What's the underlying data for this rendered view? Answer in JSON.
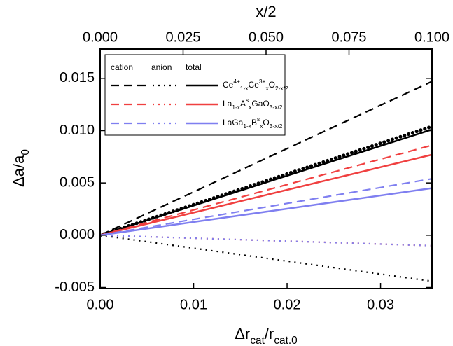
{
  "chart_data": {
    "type": "line",
    "x_label": [
      {
        "text": "Δr"
      },
      {
        "text": "cat",
        "pos": "sub"
      },
      {
        "text": "/r"
      },
      {
        "text": "cat.0",
        "pos": "sub"
      }
    ],
    "y_label": [
      {
        "text": "Δa/a"
      },
      {
        "text": "0",
        "pos": "sub"
      }
    ],
    "x2_label": "x/2",
    "xlim": [
      0,
      0.0355
    ],
    "xticks": [
      {
        "value": 0,
        "label": "0.00"
      },
      0.01,
      0.02,
      0.03
    ],
    "x2lim": [
      0,
      0.1
    ],
    "x2ticks": [
      {
        "value": 0,
        "label": "0.000"
      },
      0.025,
      {
        "value": 0.05,
        "label": "0.050"
      },
      0.075,
      {
        "value": 0.1,
        "label": "0.100"
      }
    ],
    "ylim": [
      -0.0051,
      0.0178
    ],
    "yticks": [
      -0.005,
      {
        "value": 0,
        "label": "0.000"
      },
      0.005,
      {
        "value": 0.01,
        "label": "0.010"
      },
      0.015
    ],
    "x": [
      0,
      0.0355
    ],
    "legend": {
      "columns": [
        "cation",
        "anion",
        "total"
      ],
      "rows": [
        {
          "color": "#000000",
          "label": [
            {
              "text": "Ce"
            },
            {
              "text": "4+",
              "pos": "sup"
            },
            {
              "text": "1-x",
              "pos": "sub"
            },
            {
              "text": "Ce"
            },
            {
              "text": "3+",
              "pos": "sup"
            },
            {
              "text": "x",
              "pos": "sub"
            },
            {
              "text": "O"
            },
            {
              "text": "2-x/2",
              "pos": "sub"
            }
          ]
        },
        {
          "color": "#f04040",
          "label": [
            {
              "text": "La"
            },
            {
              "text": "1-x",
              "pos": "sub"
            },
            {
              "text": "A"
            },
            {
              "text": "s",
              "pos": "sup"
            },
            {
              "text": "x",
              "pos": "sub"
            },
            {
              "text": "GaO"
            },
            {
              "text": "3-x/2",
              "pos": "sub"
            }
          ]
        },
        {
          "color": "#7f7ff0",
          "label": [
            {
              "text": "LaGa"
            },
            {
              "text": "1-x",
              "pos": "sub"
            },
            {
              "text": "B"
            },
            {
              "text": "s",
              "pos": "sup"
            },
            {
              "text": "x",
              "pos": "sub"
            },
            {
              "text": "O"
            },
            {
              "text": "3-x/2",
              "pos": "sub"
            }
          ]
        }
      ]
    },
    "series": [
      {
        "color": "#000000",
        "style": "dashed",
        "values": [
          0,
          0.0147
        ]
      },
      {
        "color": "#000000",
        "style": "dotted",
        "values": [
          0,
          -0.0044
        ]
      },
      {
        "color": "#000000",
        "style": "solid",
        "values": [
          0,
          0.0101
        ]
      },
      {
        "color": "#000000",
        "style": "bold-dotted",
        "values": [
          0,
          0.0104
        ]
      },
      {
        "color": "#f04040",
        "style": "dashed",
        "values": [
          0,
          0.0086
        ]
      },
      {
        "color": "#f04040",
        "style": "dotted",
        "values": [
          0,
          -0.001
        ]
      },
      {
        "color": "#f04040",
        "style": "solid",
        "values": [
          0,
          0.0077
        ]
      },
      {
        "color": "#7f7ff0",
        "style": "dashed",
        "values": [
          0,
          0.0054
        ]
      },
      {
        "color": "#7f7ff0",
        "style": "dotted",
        "values": [
          0,
          -0.001
        ]
      },
      {
        "color": "#7f7ff0",
        "style": "solid",
        "values": [
          0,
          0.0045
        ]
      }
    ]
  }
}
